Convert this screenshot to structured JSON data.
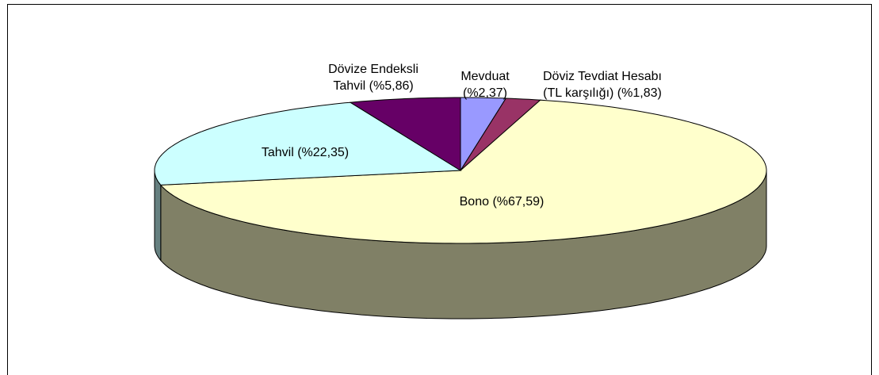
{
  "chart_data": {
    "type": "pie3d",
    "values": [
      2.37,
      1.83,
      67.59,
      22.35,
      5.86
    ],
    "value_labels": [
      [
        "Mevduat",
        "(%2,37)"
      ],
      [
        "Döviz Tevdiat Hesabı",
        "(TL karşılığı) (%1,83)"
      ],
      [
        "Bono (%67,59)"
      ],
      [
        "Tahvil (%22,35)"
      ],
      [
        "Dövize Endeksli",
        "Tahvil (%5,86)"
      ]
    ],
    "colors": [
      "#9999ff",
      "#993366",
      "#ffffcc",
      "#ccffff",
      "#660066"
    ]
  }
}
